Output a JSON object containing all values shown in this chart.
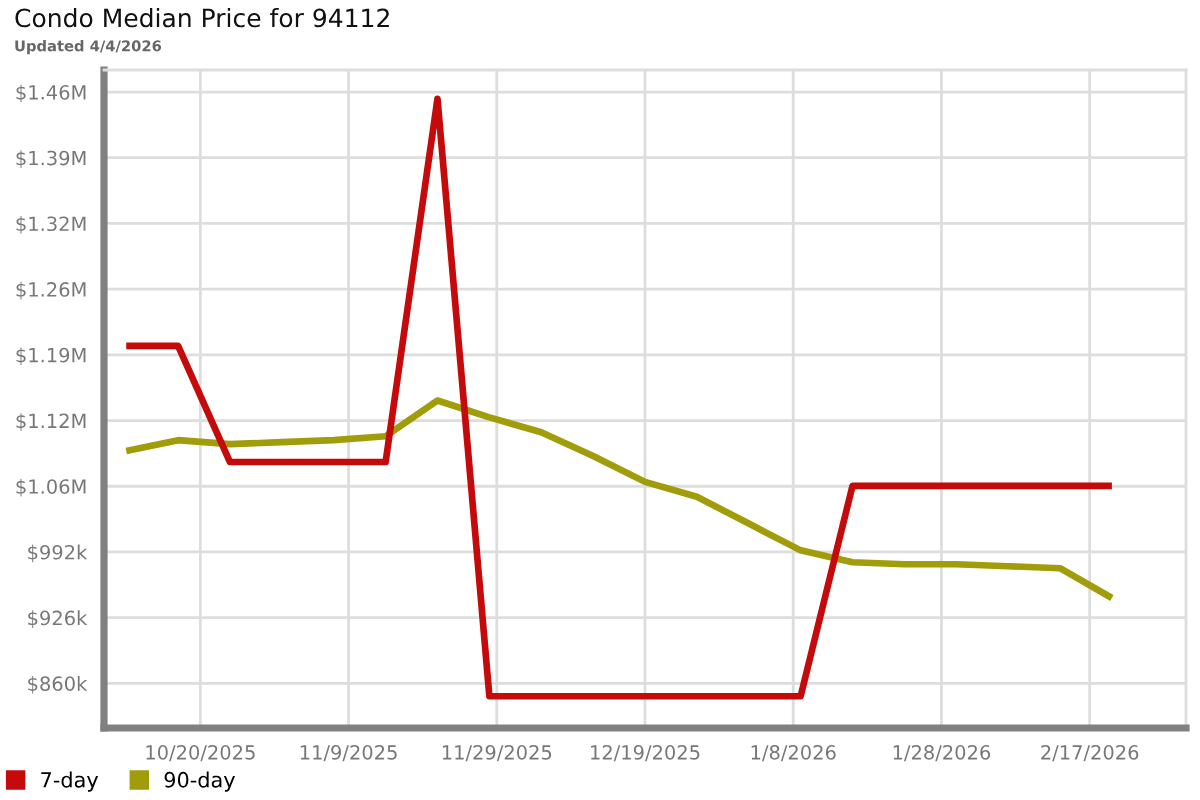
{
  "chart_data": {
    "type": "line",
    "title": "Condo Median Price for 94112",
    "subtitle": "Updated 4/4/2026",
    "x": [
      "2025-10-10",
      "2025-10-17",
      "2025-10-24",
      "2025-10-31",
      "2025-11-07",
      "2025-11-14",
      "2025-11-21",
      "2025-11-28",
      "2025-12-05",
      "2025-12-12",
      "2025-12-19",
      "2025-12-26",
      "2026-01-02",
      "2026-01-09",
      "2026-01-16",
      "2026-01-23",
      "2026-01-30",
      "2026-02-06",
      "2026-02-13",
      "2026-02-20"
    ],
    "series": [
      {
        "name": "7-day",
        "color": "#c40a0a",
        "values": [
          1200000,
          1200000,
          1083000,
          1083000,
          1083000,
          1083000,
          1449000,
          847000,
          847000,
          847000,
          847000,
          847000,
          847000,
          847000,
          1059000,
          1059000,
          1059000,
          1059000,
          1059000,
          1059000
        ]
      },
      {
        "name": "90-day",
        "color": "#a09c0a",
        "values": [
          1094000,
          1105000,
          1101000,
          1103000,
          1105000,
          1109000,
          1145000,
          1128000,
          1113000,
          1089000,
          1063000,
          1048000,
          1021000,
          994000,
          982000,
          980000,
          980000,
          978000,
          976000,
          946000
        ]
      }
    ],
    "xlim": [
      "2025-10-07",
      "2026-03-02"
    ],
    "xticks": [
      {
        "value": "2025-10-20",
        "label": "10/20/2025"
      },
      {
        "value": "2025-11-09",
        "label": "11/9/2025"
      },
      {
        "value": "2025-11-29",
        "label": "11/29/2025"
      },
      {
        "value": "2025-12-19",
        "label": "12/19/2025"
      },
      {
        "value": "2026-01-08",
        "label": "1/8/2026"
      },
      {
        "value": "2026-01-28",
        "label": "1/28/2026"
      },
      {
        "value": "2026-02-17",
        "label": "2/17/2026"
      }
    ],
    "ylim": [
      815000,
      1478000
    ],
    "yticks": [
      {
        "value": 860000,
        "label": "$860k"
      },
      {
        "value": 926200,
        "label": "$926k"
      },
      {
        "value": 992400,
        "label": "$992k"
      },
      {
        "value": 1058600,
        "label": "$1.06M"
      },
      {
        "value": 1124800,
        "label": "$1.12M"
      },
      {
        "value": 1191000,
        "label": "$1.19M"
      },
      {
        "value": 1257200,
        "label": "$1.26M"
      },
      {
        "value": 1323400,
        "label": "$1.32M"
      },
      {
        "value": 1389600,
        "label": "$1.39M"
      },
      {
        "value": 1455800,
        "label": "$1.46M"
      }
    ],
    "grid": true,
    "legend": "bottom left"
  }
}
